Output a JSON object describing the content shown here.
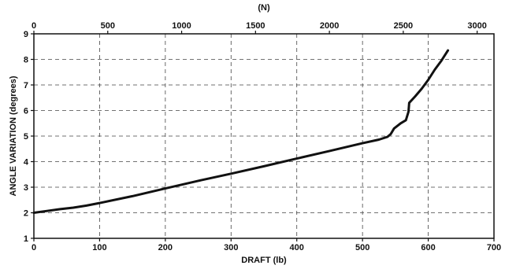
{
  "chart_data": {
    "type": "line",
    "title": "",
    "xlabel": "DRAFT (lb)",
    "ylabel": "ANGLE VARIATION (degrees)",
    "x2label": "(N)",
    "xlim": [
      0,
      700
    ],
    "ylim": [
      1,
      9
    ],
    "x2lim": [
      0,
      3113.8
    ],
    "xticks": [
      0,
      100,
      200,
      300,
      400,
      500,
      600,
      700
    ],
    "yticks": [
      1,
      2,
      3,
      4,
      5,
      6,
      7,
      8,
      9
    ],
    "x2ticks": [
      0,
      500,
      1000,
      1500,
      2000,
      2500,
      3000
    ],
    "grid": true,
    "grid_style": "dashed",
    "series": [
      {
        "color": "#111111",
        "x": [
          0,
          20,
          40,
          60,
          80,
          100,
          150,
          200,
          250,
          300,
          350,
          400,
          450,
          500,
          525,
          538,
          543,
          548,
          558,
          566,
          570,
          571,
          580,
          590,
          600,
          610,
          620,
          630
        ],
        "y": [
          2.0,
          2.07,
          2.14,
          2.2,
          2.28,
          2.38,
          2.65,
          2.95,
          3.25,
          3.53,
          3.82,
          4.12,
          4.42,
          4.72,
          4.86,
          4.97,
          5.08,
          5.3,
          5.5,
          5.62,
          5.95,
          6.3,
          6.55,
          6.85,
          7.2,
          7.6,
          7.95,
          8.35
        ]
      }
    ]
  }
}
